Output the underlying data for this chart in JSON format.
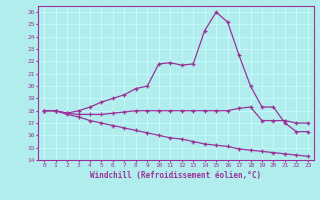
{
  "xlabel": "Windchill (Refroidissement éolien,°C)",
  "bg_color": "#b2eded",
  "line_color": "#993399",
  "grid_color": "#ccffff",
  "xlim": [
    -0.5,
    23.5
  ],
  "ylim": [
    14,
    26.5
  ],
  "xticks": [
    0,
    1,
    2,
    3,
    4,
    5,
    6,
    7,
    8,
    9,
    10,
    11,
    12,
    13,
    14,
    15,
    16,
    17,
    18,
    19,
    20,
    21,
    22,
    23
  ],
  "yticks": [
    14,
    15,
    16,
    17,
    18,
    19,
    20,
    21,
    22,
    23,
    24,
    25,
    26
  ],
  "line1_x": [
    0,
    1,
    2,
    3,
    4,
    5,
    6,
    7,
    8,
    9,
    10,
    11,
    12,
    13,
    14,
    15,
    16,
    17,
    18,
    19,
    20,
    21,
    22,
    23
  ],
  "line1_y": [
    18,
    18,
    17.8,
    18.0,
    18.3,
    18.7,
    19.0,
    19.3,
    19.8,
    20.0,
    21.8,
    21.9,
    21.7,
    21.8,
    24.5,
    26.0,
    25.2,
    22.5,
    20.0,
    18.3,
    18.3,
    17.0,
    16.3,
    16.3
  ],
  "line2_x": [
    0,
    1,
    2,
    3,
    4,
    5,
    6,
    7,
    8,
    9,
    10,
    11,
    12,
    13,
    14,
    15,
    16,
    17,
    18,
    19,
    20,
    21,
    22,
    23
  ],
  "line2_y": [
    18,
    18,
    17.8,
    17.7,
    17.7,
    17.7,
    17.8,
    17.9,
    18.0,
    18.0,
    18.0,
    18.0,
    18.0,
    18.0,
    18.0,
    18.0,
    18.0,
    18.2,
    18.3,
    17.2,
    17.2,
    17.2,
    17.0,
    17.0
  ],
  "line3_x": [
    0,
    1,
    2,
    3,
    4,
    5,
    6,
    7,
    8,
    9,
    10,
    11,
    12,
    13,
    14,
    15,
    16,
    17,
    18,
    19,
    20,
    21,
    22,
    23
  ],
  "line3_y": [
    18,
    18,
    17.7,
    17.5,
    17.2,
    17.0,
    16.8,
    16.6,
    16.4,
    16.2,
    16.0,
    15.8,
    15.7,
    15.5,
    15.3,
    15.2,
    15.1,
    14.9,
    14.8,
    14.7,
    14.6,
    14.5,
    14.4,
    14.3
  ]
}
